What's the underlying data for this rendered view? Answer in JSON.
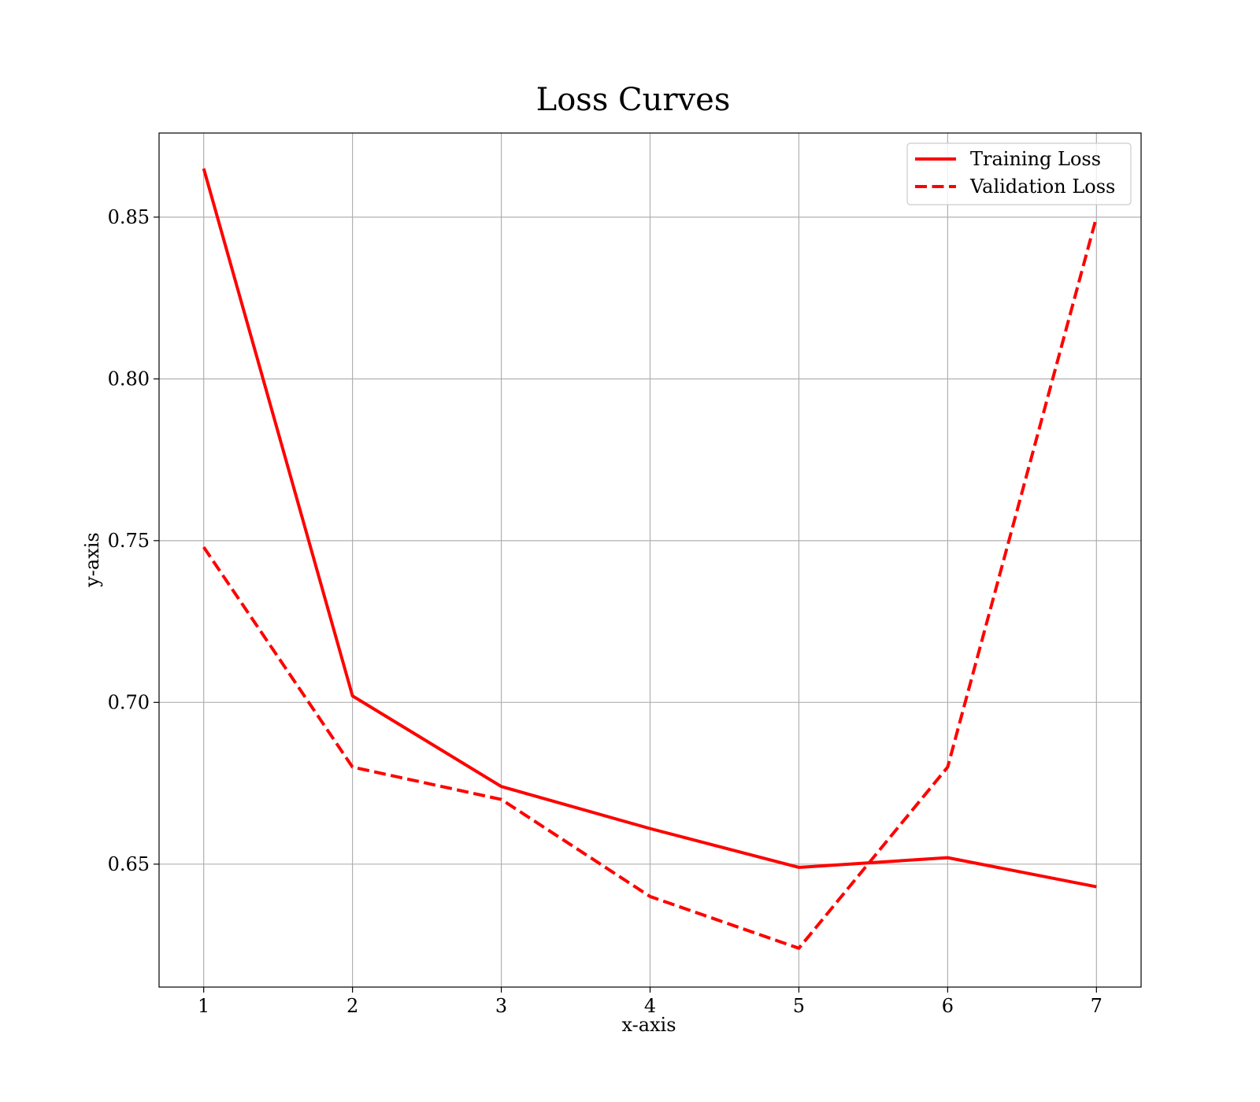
{
  "chart_data": {
    "type": "line",
    "title": "Loss Curves",
    "xlabel": "x-axis",
    "ylabel": "y-axis",
    "x": [
      1,
      2,
      3,
      4,
      5,
      6,
      7
    ],
    "x_ticks": [
      1,
      2,
      3,
      4,
      5,
      6,
      7
    ],
    "y_ticks": [
      0.65,
      0.7,
      0.75,
      0.8,
      0.85
    ],
    "xlim": [
      0.7,
      7.3
    ],
    "ylim": [
      0.612,
      0.876
    ],
    "grid": true,
    "legend_position": "top-right",
    "series": [
      {
        "name": "Training Loss",
        "values": [
          0.865,
          0.702,
          0.674,
          0.661,
          0.649,
          0.652,
          0.643
        ],
        "color": "#ff0000",
        "style": "solid"
      },
      {
        "name": "Validation Loss",
        "values": [
          0.748,
          0.68,
          0.67,
          0.64,
          0.624,
          0.68,
          0.85
        ],
        "color": "#ff0000",
        "style": "dashed"
      }
    ]
  }
}
